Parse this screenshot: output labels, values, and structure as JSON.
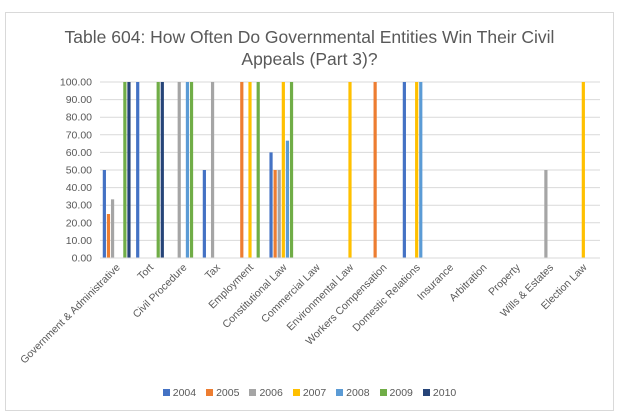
{
  "chart_data": {
    "type": "bar",
    "title_line1": "Table 604: How Often Do Governmental Entities Win Their Civil",
    "title_line2": "Appeals (Part 3)?",
    "xlabel": "",
    "ylabel": "",
    "ylim": [
      0,
      100
    ],
    "yticks": [
      "0.00",
      "10.00",
      "20.00",
      "30.00",
      "40.00",
      "50.00",
      "60.00",
      "70.00",
      "80.00",
      "90.00",
      "100.00"
    ],
    "ytick_values": [
      0,
      10,
      20,
      30,
      40,
      50,
      60,
      70,
      80,
      90,
      100
    ],
    "grid": true,
    "legend_position": "bottom",
    "categories": [
      "Government & Administrative",
      "Tort",
      "Civil Procedure",
      "Tax",
      "Employment",
      "Constitutional Law",
      "Commercial Law",
      "Environmental Law",
      "Workers Compensation",
      "Domestic Relations",
      "Insurance",
      "Arbitration",
      "Property",
      "Wills & Estates",
      "Election Law"
    ],
    "series": [
      {
        "name": "2004",
        "color": "#4472c4",
        "values": [
          50,
          100,
          null,
          50,
          null,
          60,
          null,
          null,
          null,
          100,
          null,
          null,
          null,
          null,
          null
        ]
      },
      {
        "name": "2005",
        "color": "#ed7d31",
        "values": [
          25,
          null,
          null,
          null,
          100,
          50,
          null,
          null,
          100,
          null,
          null,
          null,
          null,
          null,
          null
        ]
      },
      {
        "name": "2006",
        "color": "#a5a5a5",
        "values": [
          33.33,
          null,
          100,
          100,
          null,
          50,
          null,
          null,
          null,
          null,
          null,
          null,
          null,
          50,
          null
        ]
      },
      {
        "name": "2007",
        "color": "#ffc000",
        "values": [
          null,
          null,
          null,
          null,
          100,
          100,
          null,
          100,
          null,
          100,
          null,
          null,
          null,
          null,
          100
        ]
      },
      {
        "name": "2008",
        "color": "#5b9bd5",
        "values": [
          null,
          null,
          100,
          null,
          null,
          66.67,
          null,
          null,
          null,
          100,
          null,
          null,
          null,
          null,
          null
        ]
      },
      {
        "name": "2009",
        "color": "#70ad47",
        "values": [
          100,
          100,
          100,
          null,
          100,
          100,
          null,
          null,
          null,
          null,
          null,
          null,
          null,
          null,
          null
        ]
      },
      {
        "name": "2010",
        "color": "#264478",
        "values": [
          100,
          100,
          null,
          null,
          null,
          null,
          null,
          null,
          null,
          null,
          null,
          null,
          null,
          null,
          null
        ]
      }
    ]
  }
}
